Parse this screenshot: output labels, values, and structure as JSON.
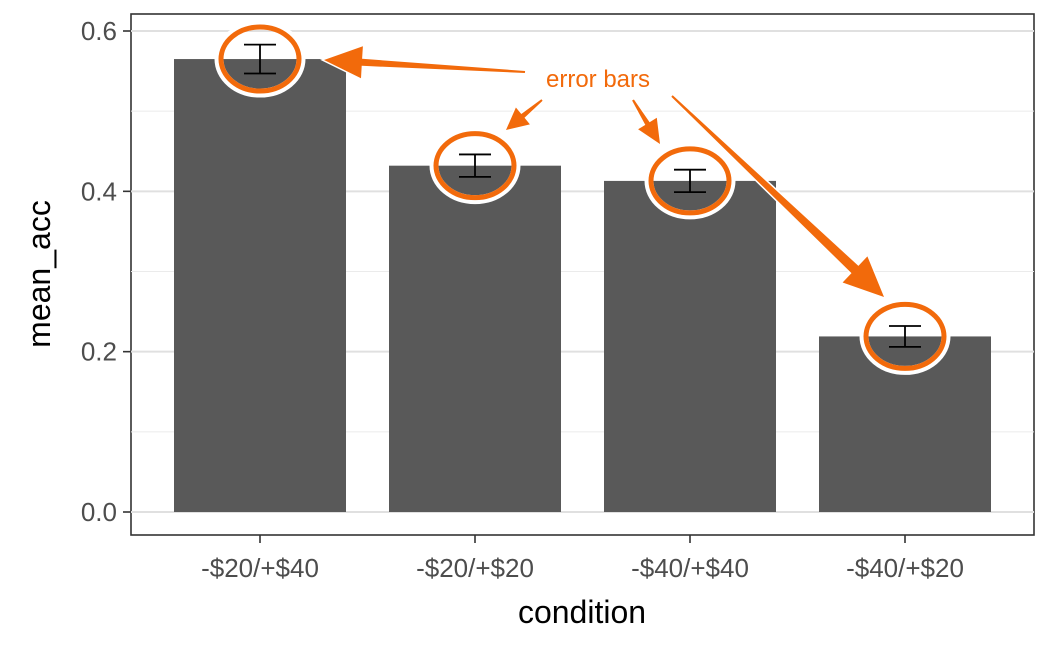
{
  "chart_data": {
    "type": "bar",
    "categories": [
      "-$20/+$40",
      "-$20/+$20",
      "-$40/+$40",
      "-$40/+$20"
    ],
    "values": [
      0.565,
      0.432,
      0.413,
      0.219
    ],
    "error_low": [
      0.547,
      0.418,
      0.399,
      0.206
    ],
    "error_high": [
      0.583,
      0.446,
      0.427,
      0.232
    ],
    "xlabel": "condition",
    "ylabel": "mean_acc",
    "ylim": [
      -0.03,
      0.61
    ],
    "yticks": [
      0.0,
      0.2,
      0.4,
      0.6
    ],
    "ytick_labels": [
      "0.0",
      "0.2",
      "0.4",
      "0.6"
    ],
    "grid": true,
    "annotation": "error bars",
    "bar_color": "#595959",
    "annotation_color": "#f26a0b"
  }
}
